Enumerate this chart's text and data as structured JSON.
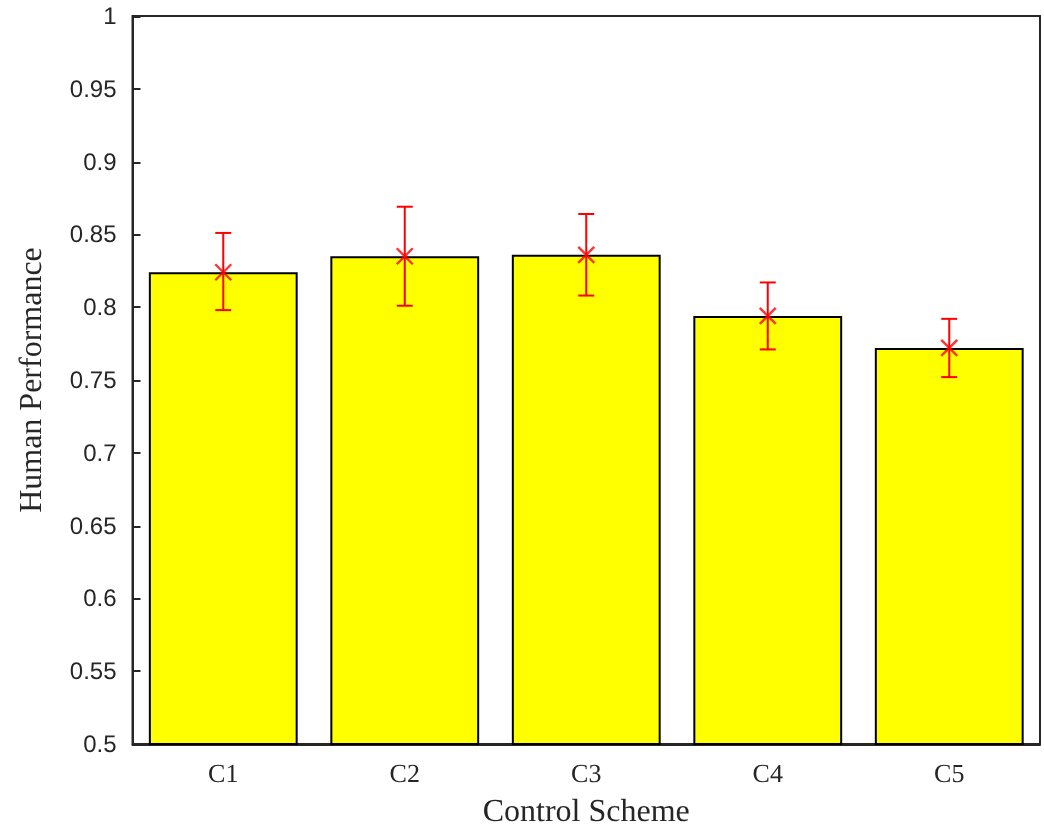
{
  "chart_data": {
    "type": "bar",
    "xlabel": "Control Scheme",
    "ylabel": "Human Performance",
    "categories": [
      "C1",
      "C2",
      "C3",
      "C4",
      "C5"
    ],
    "series": [
      {
        "color": "#ffff00",
        "values": [
          0.824,
          0.835,
          0.836,
          0.794,
          0.772
        ]
      },
      {
        "type": "scatter",
        "color": "#ff0000",
        "marker": "cross",
        "x": [
          "C1",
          "C2",
          "C3",
          "C4",
          "C5"
        ],
        "values": [
          0.824,
          0.835,
          0.836,
          0.794,
          0.772
        ],
        "errors": [
          [
            0.798,
            0.851
          ],
          [
            0.801,
            0.869
          ],
          [
            0.808,
            0.864
          ],
          [
            0.771,
            0.817
          ],
          [
            0.752,
            0.792
          ]
        ]
      }
    ],
    "ylim": [
      0.5,
      1
    ],
    "yticks": [
      0.5,
      0.55,
      0.6,
      0.65,
      0.7,
      0.75,
      0.8,
      0.85,
      0.9,
      0.95,
      1
    ],
    "grid": false
  }
}
